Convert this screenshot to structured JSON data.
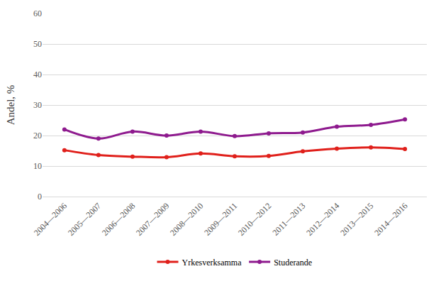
{
  "chart_data": {
    "type": "line",
    "y_label": "Andel, %",
    "categories": [
      "2004—2006",
      "2005—2007",
      "2006—2008",
      "2007—2009",
      "2008—2010",
      "2009—2011",
      "2010—2012",
      "2011—2013",
      "2012—2014",
      "2013—2015",
      "2014—2016"
    ],
    "series": [
      {
        "name": "Yrkesverksamma",
        "color": "#e0201b",
        "marker": "circle",
        "line_style": "smooth",
        "values": [
          15.2,
          13.6,
          13.1,
          12.9,
          14.1,
          13.2,
          13.3,
          14.8,
          15.7,
          16.1,
          15.6
        ]
      },
      {
        "name": "Studerande",
        "color": "#8e1a8e",
        "marker": "circle",
        "line_style": "smooth",
        "values": [
          22.0,
          19.0,
          21.3,
          20.0,
          21.3,
          19.8,
          20.7,
          21.0,
          22.9,
          23.5,
          25.3
        ]
      }
    ],
    "ylim": [
      0,
      60
    ],
    "yticks": [
      0,
      10,
      20,
      30,
      40,
      50,
      60
    ],
    "grid": true,
    "legend": "bottom"
  }
}
